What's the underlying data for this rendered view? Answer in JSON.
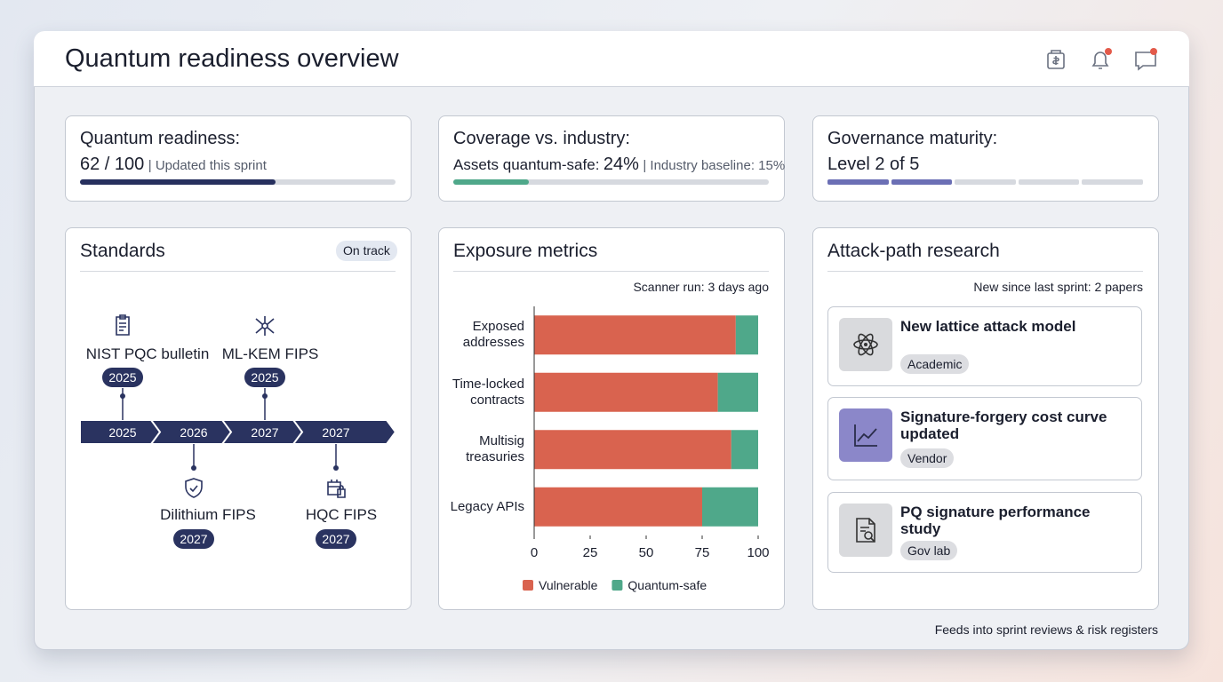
{
  "header": {
    "title": "Quantum readiness overview"
  },
  "kpis": [
    {
      "title": "Quantum readiness:",
      "value": "62 / 100",
      "note": "| Updated this sprint",
      "progress": 62,
      "max": 100
    },
    {
      "title": "Coverage vs. industry:",
      "lead": "Assets quantum-safe:",
      "value": "24%",
      "note": "| Industry baseline: 15%",
      "progress": 24,
      "max": 100
    },
    {
      "title": "Governance maturity:",
      "value": "Level 2 of 5",
      "level": 2,
      "levels": 5
    }
  ],
  "standards": {
    "title": "Standards",
    "status": "On track",
    "years": [
      "2025",
      "2026",
      "2027",
      "2027"
    ],
    "milestones": [
      {
        "label": "NIST PQC bulletin",
        "year": "2025"
      },
      {
        "label": "Dilithium FIPS",
        "year": "2027"
      },
      {
        "label": "ML-KEM FIPS",
        "year": "2025"
      },
      {
        "label": "HQC FIPS",
        "year": "2027"
      }
    ]
  },
  "exposure": {
    "title": "Exposure metrics",
    "subtitle": "Scanner run: 3 days ago"
  },
  "chart_data": {
    "type": "bar",
    "orientation": "horizontal",
    "stacked": true,
    "categories": [
      "Exposed addresses",
      "Time-locked contracts",
      "Multisig treasuries",
      "Legacy APIs"
    ],
    "series": [
      {
        "name": "Vulnerable",
        "color": "#d9634f",
        "values": [
          90,
          82,
          88,
          75
        ]
      },
      {
        "name": "Quantum-safe",
        "color": "#4fa88a",
        "values": [
          10,
          18,
          12,
          25
        ]
      }
    ],
    "xlim": [
      0,
      100
    ],
    "xticks": [
      0,
      25,
      50,
      75,
      100
    ]
  },
  "research": {
    "title": "Attack-path research",
    "subtitle": "New since last sprint: 2 papers",
    "items": [
      {
        "title": "New lattice attack model",
        "tag": "Academic"
      },
      {
        "title": "Signature-forgery cost curve updated",
        "tag": "Vendor"
      },
      {
        "title": "PQ signature performance study",
        "tag": "Gov lab"
      }
    ]
  },
  "footer": {
    "text": "Feeds into sprint reviews & risk registers"
  }
}
